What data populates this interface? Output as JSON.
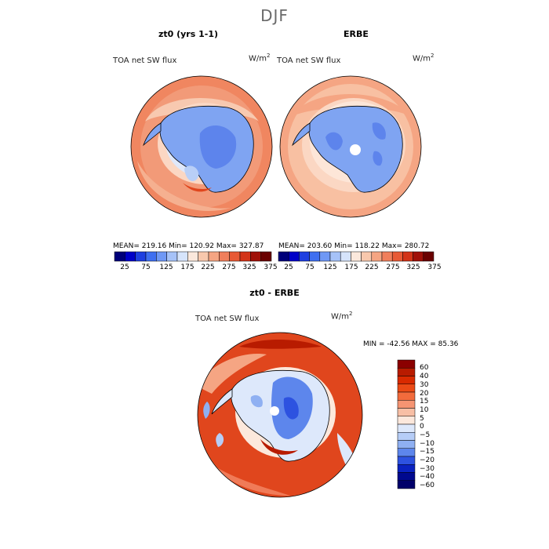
{
  "figure": {
    "season": "DJF"
  },
  "panels": [
    {
      "title": "zt0 (yrs 1-1)",
      "variable": "TOA net SW flux",
      "units": "W/m",
      "units_sup": "2",
      "stats": "MEAN= 219.16   Min= 120.92   Max= 327.87"
    },
    {
      "title": "ERBE",
      "variable": "TOA net SW flux",
      "units": "W/m",
      "units_sup": "2",
      "stats": "MEAN= 203.60   Min= 118.22   Max= 280.72"
    },
    {
      "title": "zt0 - ERBE",
      "variable": "TOA net SW flux",
      "units": "W/m",
      "units_sup": "2",
      "stats": "MIN = -42.56 MAX =  85.36"
    }
  ],
  "colorbar_abs": {
    "ticks": [
      "25",
      "75",
      "125",
      "175",
      "225",
      "275",
      "325",
      "375"
    ],
    "colors": [
      "#00007a",
      "#0000c8",
      "#1e3fe0",
      "#3f6ff0",
      "#6f98f5",
      "#a6c2f8",
      "#d6e4fb",
      "#fbe8dc",
      "#f8c8ad",
      "#f5a583",
      "#f07f5c",
      "#e85a35",
      "#d33418",
      "#a01008",
      "#6a0000"
    ]
  },
  "colorbar_diff": {
    "ticks": [
      "60",
      "40",
      "30",
      "20",
      "15",
      "10",
      "5",
      "0",
      "−5",
      "−10",
      "−15",
      "−20",
      "−30",
      "−40",
      "−60"
    ],
    "colors": [
      "#8b0000",
      "#b81b00",
      "#d92a00",
      "#eb4a16",
      "#f26b3c",
      "#f59472",
      "#f8bfa5",
      "#fce8dc",
      "#dde8fb",
      "#b6cdf7",
      "#8fb0f2",
      "#5d86ec",
      "#2d52e0",
      "#0a22c0",
      "#00098f",
      "#00006a"
    ]
  },
  "map_colors": {
    "ocean_mid": "#f29a78",
    "ocean_far": "#f07b58",
    "ocean_light": "#f8c9b0",
    "pale": "#fde6d8",
    "ice_blue": "#7fa4f2",
    "ice_deep": "#5d84ec",
    "ice_light": "#b9cff7",
    "diff_red": "#e0461d",
    "diff_darkred": "#b81b00",
    "diff_blue": "#2d52e0",
    "diff_white": "#fcefe7",
    "coast": "#000000"
  }
}
